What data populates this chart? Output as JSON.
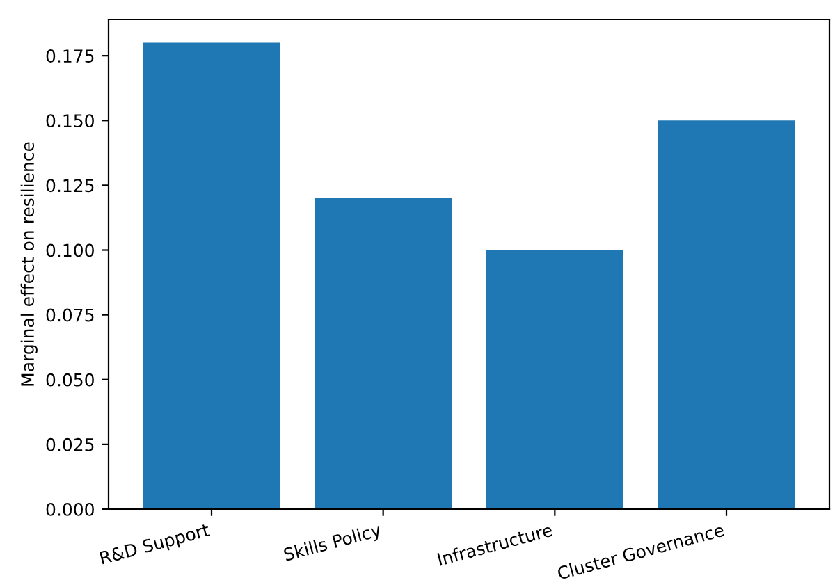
{
  "chart_data": {
    "type": "bar",
    "ylabel": "Marginal effect on resilience",
    "categories": [
      "R&D Support",
      "Skills Policy",
      "Infrastructure",
      "Cluster Governance"
    ],
    "values": [
      0.18,
      0.12,
      0.1,
      0.15
    ],
    "color": "#1f77b4",
    "ylim": [
      0,
      0.189
    ],
    "yticks": [
      {
        "value": 0,
        "label": "0.000"
      },
      {
        "value": 0.025,
        "label": "0.025"
      },
      {
        "value": 0.05,
        "label": "0.050"
      },
      {
        "value": 0.075,
        "label": "0.075"
      },
      {
        "value": 0.1,
        "label": "0.100"
      },
      {
        "value": 0.125,
        "label": "0.125"
      },
      {
        "value": 0.15,
        "label": "0.150"
      },
      {
        "value": 0.175,
        "label": "0.175"
      }
    ],
    "grid": false
  }
}
